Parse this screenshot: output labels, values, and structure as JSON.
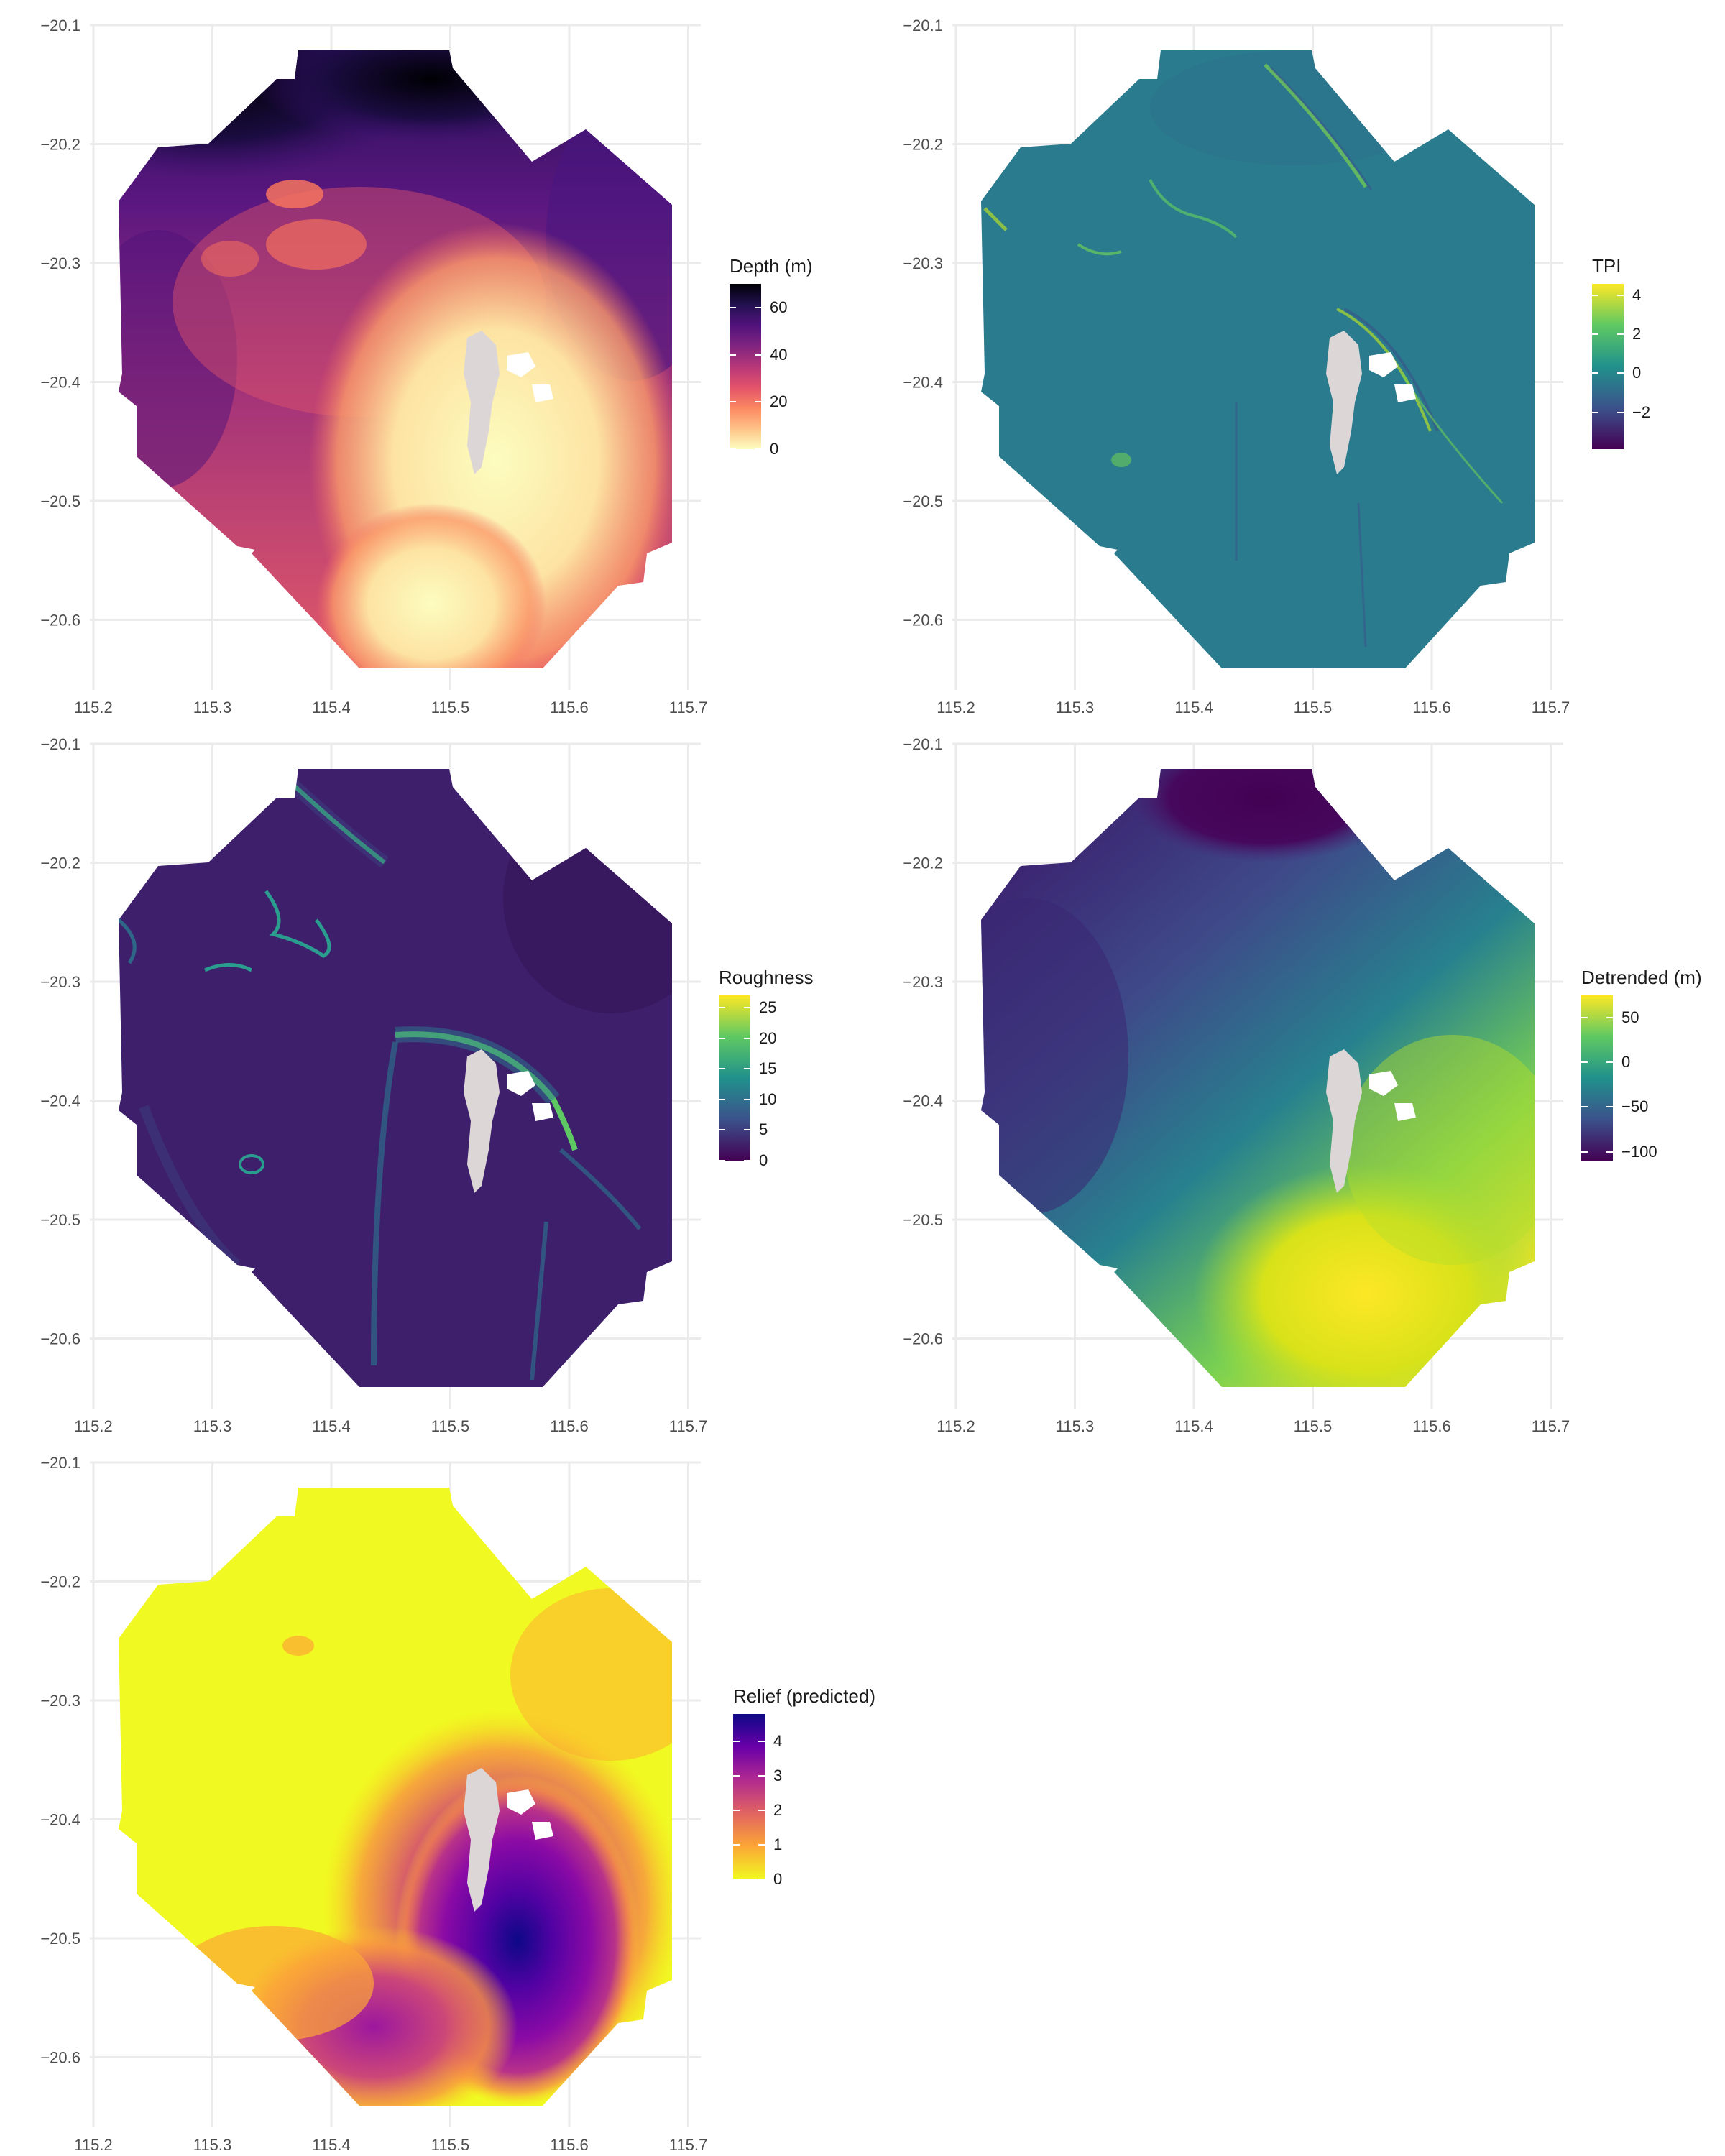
{
  "map_axes": {
    "x_ticks": [
      "115.2",
      "115.3",
      "115.4",
      "115.5",
      "115.6",
      "115.7"
    ],
    "y_ticks": [
      "−20.1",
      "−20.2",
      "−20.3",
      "−20.4",
      "−20.5",
      "−20.6"
    ]
  },
  "panels": [
    {
      "name": "depth",
      "legend_title": "Depth (m)",
      "legend_ticks": [
        {
          "label": "60",
          "value": 60
        },
        {
          "label": "40",
          "value": 40
        },
        {
          "label": "20",
          "value": 20
        },
        {
          "label": "0",
          "value": 0
        }
      ],
      "legend_range": [
        0,
        70
      ],
      "palette": [
        "#fcfdbf",
        "#fec287",
        "#fb8861",
        "#e3526b",
        "#b73779",
        "#7f2480",
        "#51127c",
        "#221150",
        "#000004"
      ]
    },
    {
      "name": "tpi",
      "legend_title": "TPI",
      "legend_ticks": [
        {
          "label": "4",
          "value": 4
        },
        {
          "label": "2",
          "value": 2
        },
        {
          "label": "0",
          "value": 0
        },
        {
          "label": "−2",
          "value": -2
        }
      ],
      "legend_range": [
        -3.9,
        4.6
      ],
      "palette": [
        "#440154",
        "#3b528b",
        "#21918c",
        "#5ec962",
        "#fde725"
      ]
    },
    {
      "name": "roughness",
      "legend_title": "Roughness",
      "legend_ticks": [
        {
          "label": "25",
          "value": 25
        },
        {
          "label": "20",
          "value": 20
        },
        {
          "label": "15",
          "value": 15
        },
        {
          "label": "10",
          "value": 10
        },
        {
          "label": "5",
          "value": 5
        },
        {
          "label": "0",
          "value": 0
        }
      ],
      "legend_range": [
        0,
        27
      ],
      "palette": [
        "#440154",
        "#3b528b",
        "#21918c",
        "#5ec962",
        "#fde725"
      ]
    },
    {
      "name": "detrended",
      "legend_title": "Detrended (m)",
      "legend_ticks": [
        {
          "label": "50",
          "value": 50
        },
        {
          "label": "0",
          "value": 0
        },
        {
          "label": "−50",
          "value": -50
        },
        {
          "label": "−100",
          "value": -100
        }
      ],
      "legend_range": [
        -110,
        75
      ],
      "palette": [
        "#440154",
        "#3b528b",
        "#21918c",
        "#5ec962",
        "#fde725"
      ]
    },
    {
      "name": "relief",
      "legend_title": "Relief (predicted)",
      "legend_ticks": [
        {
          "label": "4",
          "value": 4
        },
        {
          "label": "3",
          "value": 3
        },
        {
          "label": "2",
          "value": 2
        },
        {
          "label": "1",
          "value": 1
        },
        {
          "label": "0",
          "value": 0
        }
      ],
      "legend_range": [
        0,
        4.8
      ],
      "palette": [
        "#f0f921",
        "#fca636",
        "#e16462",
        "#b12a90",
        "#6a00a8",
        "#0d0887"
      ]
    }
  ]
}
